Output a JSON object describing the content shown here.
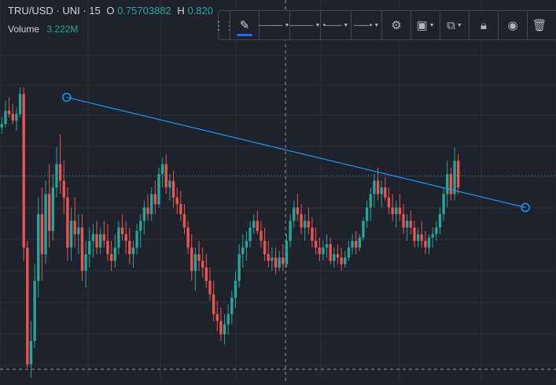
{
  "legend": {
    "symbol": "TRU/USD · UNI · 15",
    "open_label": "O",
    "open_value": "0.75703882",
    "high_label": "H",
    "high_value": "0.820",
    "volume_label": "Volume",
    "volume_value": "3.222M"
  },
  "toolbar": {
    "items": [
      "drag-handle",
      "pencil",
      "line-color",
      "line-width",
      "line-style",
      "line-ends",
      "settings",
      "layers",
      "clone",
      "lock",
      "visibility",
      "delete"
    ]
  },
  "colors": {
    "background": "#1e222d",
    "up": "#26a69a",
    "down": "#ef5350",
    "trendline": "#2196f3",
    "accent": "#2962ff"
  },
  "chart_data": {
    "type": "candlestick",
    "y_range": [
      0.0,
      1.0
    ],
    "candles": [
      [
        0.76,
        0.79,
        0.74,
        0.77
      ],
      [
        0.77,
        0.84,
        0.76,
        0.81
      ],
      [
        0.81,
        0.85,
        0.79,
        0.8
      ],
      [
        0.8,
        0.83,
        0.77,
        0.78
      ],
      [
        0.78,
        0.82,
        0.75,
        0.8
      ],
      [
        0.8,
        0.88,
        0.79,
        0.86
      ],
      [
        0.86,
        0.88,
        0.36,
        0.4
      ],
      [
        0.4,
        0.42,
        0.04,
        0.05
      ],
      [
        0.05,
        0.18,
        0.01,
        0.12
      ],
      [
        0.12,
        0.35,
        0.1,
        0.3
      ],
      [
        0.3,
        0.55,
        0.25,
        0.5
      ],
      [
        0.5,
        0.58,
        0.3,
        0.38
      ],
      [
        0.38,
        0.6,
        0.35,
        0.56
      ],
      [
        0.56,
        0.65,
        0.4,
        0.45
      ],
      [
        0.45,
        0.62,
        0.42,
        0.58
      ],
      [
        0.58,
        0.7,
        0.55,
        0.65
      ],
      [
        0.65,
        0.74,
        0.56,
        0.6
      ],
      [
        0.6,
        0.66,
        0.5,
        0.55
      ],
      [
        0.55,
        0.58,
        0.36,
        0.4
      ],
      [
        0.4,
        0.52,
        0.36,
        0.48
      ],
      [
        0.48,
        0.55,
        0.4,
        0.44
      ],
      [
        0.44,
        0.5,
        0.38,
        0.46
      ],
      [
        0.46,
        0.5,
        0.3,
        0.33
      ],
      [
        0.33,
        0.42,
        0.28,
        0.38
      ],
      [
        0.38,
        0.46,
        0.34,
        0.42
      ],
      [
        0.42,
        0.47,
        0.37,
        0.44
      ],
      [
        0.44,
        0.48,
        0.38,
        0.4
      ],
      [
        0.4,
        0.46,
        0.38,
        0.44
      ],
      [
        0.44,
        0.48,
        0.4,
        0.42
      ],
      [
        0.42,
        0.47,
        0.36,
        0.38
      ],
      [
        0.38,
        0.42,
        0.33,
        0.36
      ],
      [
        0.36,
        0.44,
        0.34,
        0.4
      ],
      [
        0.4,
        0.48,
        0.38,
        0.46
      ],
      [
        0.46,
        0.5,
        0.42,
        0.44
      ],
      [
        0.44,
        0.48,
        0.38,
        0.42
      ],
      [
        0.42,
        0.46,
        0.35,
        0.38
      ],
      [
        0.38,
        0.42,
        0.34,
        0.4
      ],
      [
        0.4,
        0.47,
        0.38,
        0.45
      ],
      [
        0.45,
        0.5,
        0.4,
        0.48
      ],
      [
        0.48,
        0.54,
        0.44,
        0.52
      ],
      [
        0.52,
        0.56,
        0.48,
        0.5
      ],
      [
        0.5,
        0.58,
        0.48,
        0.56
      ],
      [
        0.56,
        0.6,
        0.5,
        0.53
      ],
      [
        0.53,
        0.64,
        0.52,
        0.62
      ],
      [
        0.62,
        0.67,
        0.58,
        0.65
      ],
      [
        0.65,
        0.68,
        0.56,
        0.58
      ],
      [
        0.58,
        0.62,
        0.54,
        0.6
      ],
      [
        0.6,
        0.63,
        0.52,
        0.55
      ],
      [
        0.55,
        0.58,
        0.5,
        0.53
      ],
      [
        0.53,
        0.57,
        0.48,
        0.5
      ],
      [
        0.5,
        0.53,
        0.44,
        0.46
      ],
      [
        0.46,
        0.48,
        0.38,
        0.4
      ],
      [
        0.4,
        0.44,
        0.3,
        0.33
      ],
      [
        0.33,
        0.4,
        0.27,
        0.38
      ],
      [
        0.38,
        0.42,
        0.33,
        0.36
      ],
      [
        0.36,
        0.4,
        0.31,
        0.34
      ],
      [
        0.34,
        0.38,
        0.28,
        0.3
      ],
      [
        0.3,
        0.34,
        0.24,
        0.26
      ],
      [
        0.26,
        0.3,
        0.18,
        0.2
      ],
      [
        0.2,
        0.24,
        0.15,
        0.18
      ],
      [
        0.18,
        0.22,
        0.12,
        0.14
      ],
      [
        0.14,
        0.2,
        0.11,
        0.17
      ],
      [
        0.17,
        0.23,
        0.14,
        0.2
      ],
      [
        0.2,
        0.27,
        0.17,
        0.25
      ],
      [
        0.25,
        0.33,
        0.22,
        0.3
      ],
      [
        0.3,
        0.41,
        0.28,
        0.38
      ],
      [
        0.38,
        0.44,
        0.34,
        0.4
      ],
      [
        0.4,
        0.45,
        0.36,
        0.42
      ],
      [
        0.42,
        0.48,
        0.4,
        0.46
      ],
      [
        0.46,
        0.5,
        0.44,
        0.48
      ],
      [
        0.48,
        0.51,
        0.44,
        0.45
      ],
      [
        0.45,
        0.48,
        0.4,
        0.42
      ],
      [
        0.42,
        0.46,
        0.36,
        0.38
      ],
      [
        0.38,
        0.42,
        0.34,
        0.36
      ],
      [
        0.36,
        0.4,
        0.33,
        0.37
      ],
      [
        0.37,
        0.4,
        0.32,
        0.34
      ],
      [
        0.34,
        0.39,
        0.33,
        0.37
      ],
      [
        0.37,
        0.41,
        0.33,
        0.35
      ],
      [
        0.35,
        0.44,
        0.34,
        0.42
      ],
      [
        0.42,
        0.5,
        0.4,
        0.48
      ],
      [
        0.48,
        0.54,
        0.46,
        0.52
      ],
      [
        0.52,
        0.56,
        0.48,
        0.5
      ],
      [
        0.5,
        0.53,
        0.44,
        0.46
      ],
      [
        0.46,
        0.5,
        0.42,
        0.48
      ],
      [
        0.48,
        0.52,
        0.44,
        0.46
      ],
      [
        0.46,
        0.49,
        0.4,
        0.42
      ],
      [
        0.42,
        0.46,
        0.38,
        0.4
      ],
      [
        0.4,
        0.43,
        0.36,
        0.38
      ],
      [
        0.38,
        0.42,
        0.36,
        0.4
      ],
      [
        0.4,
        0.44,
        0.37,
        0.41
      ],
      [
        0.41,
        0.43,
        0.35,
        0.36
      ],
      [
        0.36,
        0.4,
        0.34,
        0.38
      ],
      [
        0.38,
        0.41,
        0.35,
        0.37
      ],
      [
        0.37,
        0.4,
        0.33,
        0.35
      ],
      [
        0.35,
        0.39,
        0.34,
        0.37
      ],
      [
        0.37,
        0.42,
        0.36,
        0.4
      ],
      [
        0.4,
        0.44,
        0.38,
        0.42
      ],
      [
        0.42,
        0.45,
        0.38,
        0.4
      ],
      [
        0.4,
        0.44,
        0.39,
        0.43
      ],
      [
        0.43,
        0.49,
        0.42,
        0.48
      ],
      [
        0.48,
        0.54,
        0.46,
        0.52
      ],
      [
        0.52,
        0.58,
        0.48,
        0.56
      ],
      [
        0.56,
        0.62,
        0.52,
        0.6
      ],
      [
        0.6,
        0.64,
        0.54,
        0.56
      ],
      [
        0.56,
        0.6,
        0.52,
        0.58
      ],
      [
        0.58,
        0.61,
        0.54,
        0.55
      ],
      [
        0.55,
        0.58,
        0.5,
        0.52
      ],
      [
        0.52,
        0.56,
        0.48,
        0.5
      ],
      [
        0.5,
        0.54,
        0.46,
        0.52
      ],
      [
        0.52,
        0.56,
        0.48,
        0.5
      ],
      [
        0.5,
        0.53,
        0.44,
        0.46
      ],
      [
        0.46,
        0.5,
        0.42,
        0.48
      ],
      [
        0.48,
        0.51,
        0.44,
        0.46
      ],
      [
        0.46,
        0.48,
        0.4,
        0.42
      ],
      [
        0.42,
        0.46,
        0.4,
        0.44
      ],
      [
        0.44,
        0.48,
        0.4,
        0.42
      ],
      [
        0.42,
        0.45,
        0.38,
        0.4
      ],
      [
        0.4,
        0.44,
        0.38,
        0.43
      ],
      [
        0.43,
        0.46,
        0.4,
        0.44
      ],
      [
        0.44,
        0.48,
        0.42,
        0.46
      ],
      [
        0.46,
        0.52,
        0.44,
        0.5
      ],
      [
        0.5,
        0.58,
        0.48,
        0.56
      ],
      [
        0.56,
        0.66,
        0.52,
        0.62
      ],
      [
        0.62,
        0.64,
        0.54,
        0.56
      ],
      [
        0.56,
        0.7,
        0.54,
        0.66
      ],
      [
        0.66,
        0.68,
        0.56,
        0.58
      ]
    ],
    "last_price": 0.615,
    "trendline": {
      "x": [
        0.12,
        0.945
      ],
      "y": [
        0.85,
        0.52
      ]
    }
  }
}
